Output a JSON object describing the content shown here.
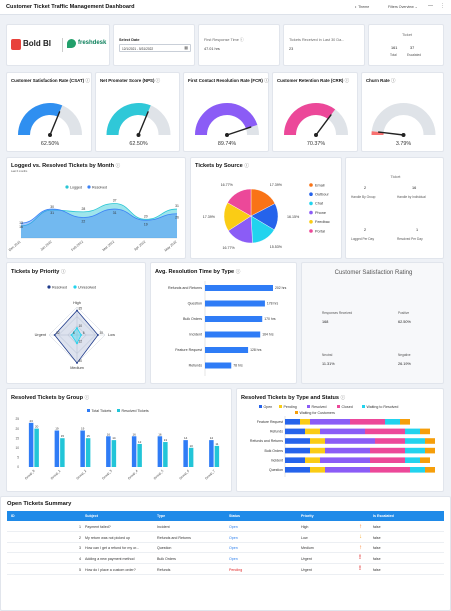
{
  "header": {
    "title": "Customer Ticket Traffic Management Dashboard",
    "theme_label": "Theme",
    "filter_label": "Filters Overview"
  },
  "logos": {
    "boldbi": "Bold BI",
    "freshdesk": "freshdesk"
  },
  "date_filter": {
    "label": "Select Date",
    "value": "12/1/2021 - 5/31/2022"
  },
  "frt": {
    "label": "First Response Time",
    "value": "47.01 hrs"
  },
  "received": {
    "label": "Tickets Received in Last 30 Da...",
    "value": "23"
  },
  "ticket_box": {
    "title": "Ticket",
    "total_value": "161",
    "total_label": "Total",
    "escalated_value": "37",
    "escalated_label": "Escalated"
  },
  "gauges": [
    {
      "title": "Customer Satisfaction Rate (CSAT)",
      "value": "62.50%",
      "fraction": 0.625,
      "color": "#2f8ff0"
    },
    {
      "title": "Net Promoter Score (NPS)",
      "value": "62.50%",
      "fraction": 0.625,
      "color": "#2fc8d8"
    },
    {
      "title": "First Contact Resolution Rate (FCR)",
      "value": "89.74%",
      "fraction": 0.8974,
      "color": "#8b5cf6"
    },
    {
      "title": "Customer Retention Rate (CRR)",
      "value": "70.37%",
      "fraction": 0.7037,
      "color": "#ec4899"
    },
    {
      "title": "Churn Rate",
      "value": "3.79%",
      "fraction": 0.0379,
      "color": "#f87171"
    }
  ],
  "logged_resolved": {
    "title": "Logged vs. Resolved Tickets by Month",
    "subtitle": "Last 6 months",
    "chart_data": {
      "type": "area",
      "categories": [
        "Dec 2021",
        "Jan 2022",
        "Feb 2022",
        "Mar 2022",
        "Apr 2022",
        "May 2022"
      ],
      "series": [
        {
          "name": "Logged",
          "values": [
            13,
            30,
            28,
            37,
            20,
            31
          ],
          "color": "#29c6d4"
        },
        {
          "name": "Resolved",
          "values": [
            16,
            31,
            22,
            31,
            19,
            26
          ],
          "color": "#3b82f6"
        }
      ]
    }
  },
  "source": {
    "title": "Tickets by Source",
    "chart_data": {
      "type": "pie",
      "categories": [
        "Email",
        "Outbour",
        "Chat",
        "Phone",
        "Feedbac",
        "Portal"
      ],
      "values": [
        17.39,
        16.15,
        15.53,
        16.77,
        17.39,
        16.77
      ],
      "colors": [
        "#f97316",
        "#2563eb",
        "#22d3ee",
        "#8b5cf6",
        "#facc15",
        "#ec4899"
      ],
      "data_labels": [
        "17.39%",
        "16.15%",
        "15.53%",
        "16.77%",
        "17.39%",
        "16.77%"
      ]
    }
  },
  "ticket_side": {
    "title": "Ticket",
    "handle_group_value": "2",
    "handle_group_label": "Handle By Group",
    "handle_indiv_value": "16",
    "handle_indiv_label": "Handle by Individual",
    "logged_day_value": "2",
    "logged_day_label": "Logged Per Day",
    "resolved_day_value": "1",
    "resolved_day_label": "Resolved Per Day"
  },
  "priority": {
    "title": "Tickets by Priority",
    "chart_data": {
      "type": "radar",
      "categories": [
        "High",
        "Low",
        "Medium",
        "Urgent"
      ],
      "series": [
        {
          "name": "Resolved",
          "values": [
            35,
            30,
            40,
            32
          ],
          "color": "#1e3a8a"
        },
        {
          "name": "Unresolved",
          "values": [
            10,
            6,
            12,
            8
          ],
          "color": "#22d3ee"
        }
      ],
      "data_labels": [
        "35",
        "10",
        "30",
        "6",
        "40",
        "12",
        "32",
        "8"
      ]
    }
  },
  "resolution_time": {
    "title": "Avg. Resolution Time by Type",
    "chart_data": {
      "type": "bar",
      "categories": [
        "Refunds and Returns",
        "Question",
        "Bulk Orders",
        "Incident",
        "Feature Request",
        "Refunds"
      ],
      "values": [
        202,
        178,
        170,
        164,
        128,
        78
      ],
      "labels": [
        "202 hrs",
        "178 hrs",
        "170 hrs",
        "164 hrs",
        "128 hrs",
        "78 hrs"
      ]
    }
  },
  "csr": {
    "title": "Customer Satisfaction Rating",
    "responses_label": "Responses Received",
    "responses_value": "168",
    "positive_label": "Positive",
    "positive_value": "62.50%",
    "neutral_label": "Neutral",
    "neutral_value": "11.31%",
    "negative_label": "Negative",
    "negative_value": "26.19%"
  },
  "by_group": {
    "title": "Resolved Tickets by Group",
    "chart_data": {
      "type": "bar",
      "categories": [
        "Group_8",
        "Group_1",
        "Group_2",
        "Group_3",
        "Group_4",
        "Group_5",
        "Group_6",
        "Group_7"
      ],
      "series": [
        {
          "name": "Total Tickets",
          "values": [
            23,
            19,
            19,
            16,
            16,
            16,
            14,
            14
          ],
          "color": "#2f7cf6"
        },
        {
          "name": "Resolved Tickets",
          "values": [
            20,
            15,
            15,
            14,
            12,
            13,
            10,
            11
          ],
          "color": "#22c5d8"
        }
      ],
      "ylim": [
        0,
        25
      ]
    }
  },
  "type_status": {
    "title": "Resolved Tickets by Type and Status",
    "chart_data": {
      "type": "bar",
      "stacked": true,
      "categories": [
        "Feature Request",
        "Refunds",
        "Refunds and Returns",
        "Bulk Orders",
        "Incident",
        "Question"
      ],
      "series": [
        {
          "name": "Open",
          "values": [
            3,
            4,
            5,
            5,
            4,
            5
          ],
          "color": "#2563eb"
        },
        {
          "name": "Pending",
          "values": [
            2,
            3,
            3,
            3,
            3,
            3
          ],
          "color": "#facc15"
        },
        {
          "name": "Resolved",
          "values": [
            8,
            9,
            10,
            9,
            10,
            9
          ],
          "color": "#8b5cf6"
        },
        {
          "name": "Closed",
          "values": [
            7,
            8,
            6,
            7,
            7,
            8
          ],
          "color": "#ec4899"
        },
        {
          "name": "Waiting to Resolved",
          "values": [
            3,
            3,
            4,
            4,
            3,
            3
          ],
          "color": "#22d3ee"
        },
        {
          "name": "Waiting for Customers",
          "values": [
            2,
            2,
            2,
            2,
            2,
            2
          ],
          "color": "#f59e0b"
        }
      ]
    }
  },
  "open_summary": {
    "title": "Open Tickets Summary",
    "columns": [
      "ID",
      "Subject",
      "Type",
      "Status",
      "Priority",
      "Is Escalated"
    ],
    "rows": [
      {
        "id": "1",
        "subject": "Payment failed?",
        "type": "Incident",
        "status": "Open",
        "priority": "High",
        "escalated": "false",
        "status_color": "#2f80ed",
        "icon": "arrow-up",
        "icon_color": "#f97316"
      },
      {
        "id": "2",
        "subject": "My return was not picked up",
        "type": "Refunds and Returns",
        "status": "Open",
        "priority": "Low",
        "escalated": "false",
        "status_color": "#2f80ed",
        "icon": "arrow-down",
        "icon_color": "#f5a623"
      },
      {
        "id": "3",
        "subject": "How can I get a refund for my or...",
        "type": "Question",
        "status": "Open",
        "priority": "Medium",
        "escalated": "false",
        "status_color": "#2f80ed",
        "icon": "arrow-up",
        "icon_color": "#f97316"
      },
      {
        "id": "4",
        "subject": "Adding a new payment method",
        "type": "Bulk Orders",
        "status": "Open",
        "priority": "Urgent",
        "escalated": "false",
        "status_color": "#2f80ed",
        "icon": "exclamation",
        "icon_color": "#e02424"
      },
      {
        "id": "5",
        "subject": "How do I place a custom order?",
        "type": "Refunds",
        "status": "Pending",
        "priority": "Urgent",
        "escalated": "false",
        "status_color": "#e02424",
        "icon": "exclamation",
        "icon_color": "#e02424"
      }
    ]
  }
}
